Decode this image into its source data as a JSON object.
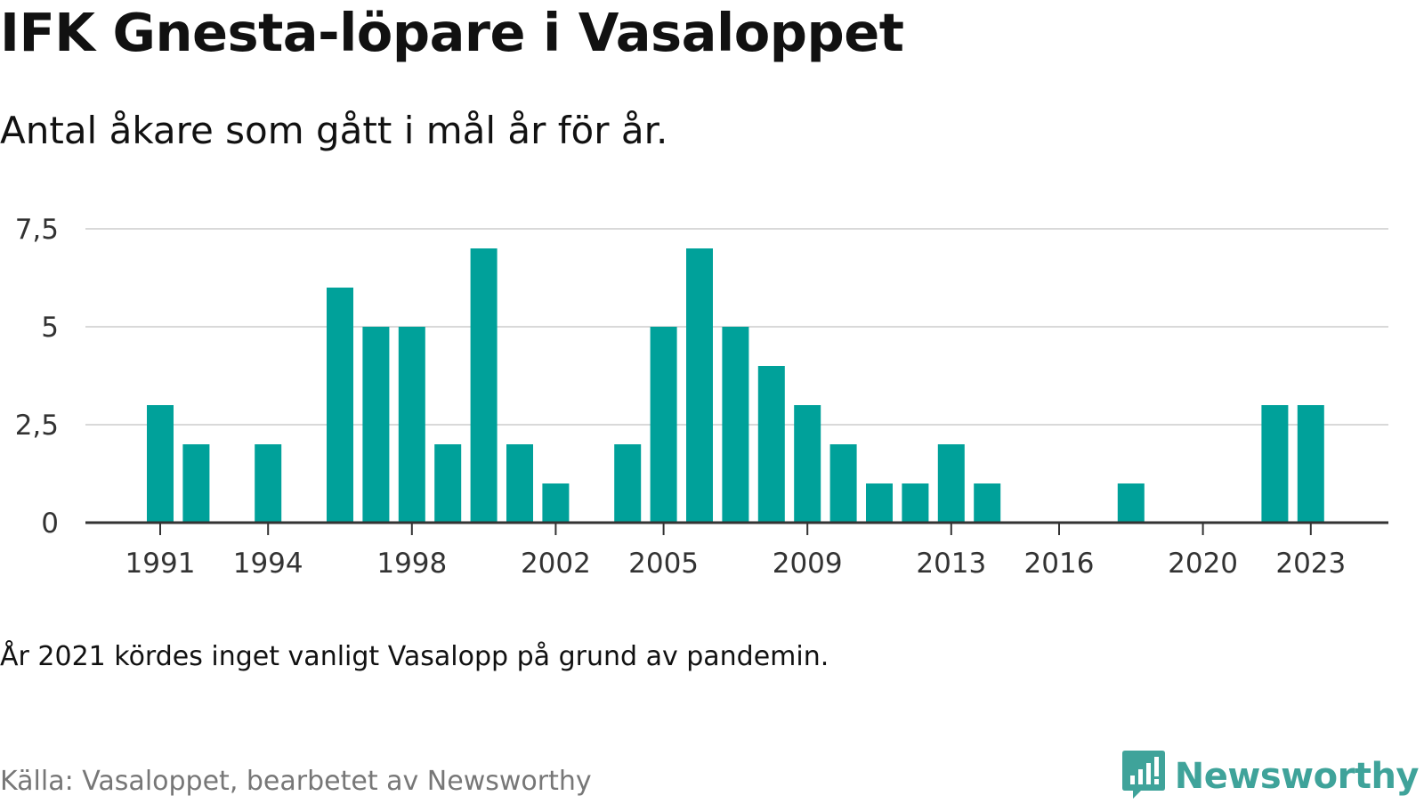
{
  "header": {
    "title": "IFK Gnesta-löpare i Vasaloppet",
    "subtitle": "Antal åkare som gått i mål år för år."
  },
  "footer": {
    "note": "År 2021 kördes inget vanligt Vasalopp på grund av pandemin.",
    "source": "Källa: Vasaloppet, bearbetet av Newsworthy",
    "brand_name": "Newsworthy",
    "brand_icon": "newsworthy-logo-icon"
  },
  "colors": {
    "bar": "#00a19a",
    "grid": "#d9d9d9",
    "baseline": "#333333",
    "brand": "#3fa39a"
  },
  "chart_data": {
    "type": "bar",
    "categories": [
      "1991",
      "1992",
      "1993",
      "1994",
      "1995",
      "1996",
      "1997",
      "1998",
      "1999",
      "2000",
      "2001",
      "2002",
      "2003",
      "2004",
      "2005",
      "2006",
      "2007",
      "2008",
      "2009",
      "2010",
      "2011",
      "2012",
      "2013",
      "2014",
      "2015",
      "2016",
      "2017",
      "2018",
      "2019",
      "2020",
      "2021",
      "2022",
      "2023"
    ],
    "values": [
      3,
      2,
      0,
      2,
      0,
      6,
      5,
      5,
      2,
      7,
      2,
      1,
      0,
      2,
      5,
      7,
      5,
      4,
      3,
      2,
      1,
      1,
      2,
      1,
      0,
      0,
      0,
      1,
      0,
      0,
      0,
      3,
      3
    ],
    "xtick_labels": [
      "1991",
      "1994",
      "1998",
      "2002",
      "2005",
      "2009",
      "2013",
      "2016",
      "2020",
      "2023"
    ],
    "yticks": [
      0,
      2.5,
      5,
      7.5
    ],
    "ytick_labels": [
      "0",
      "2,5",
      "5",
      "7,5"
    ],
    "ylim": [
      0,
      7.5
    ],
    "xlabel": "",
    "ylabel": "",
    "grid": true
  }
}
